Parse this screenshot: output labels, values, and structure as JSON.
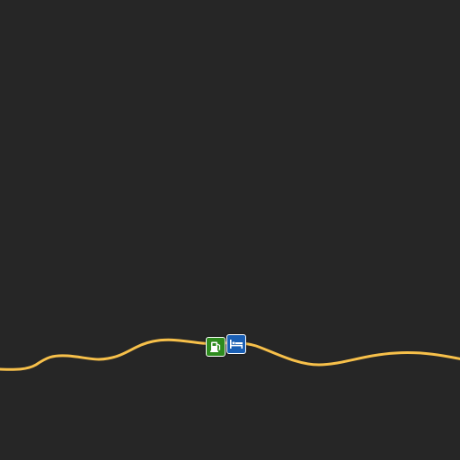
{
  "map": {
    "background_color": "#262626",
    "road": {
      "color": "#f7c04a",
      "type": "highway"
    },
    "pois": [
      {
        "name": "fuel-station",
        "icon": "fuel-pump-icon",
        "color": "#2e8b1e"
      },
      {
        "name": "lodging",
        "icon": "bed-icon",
        "color": "#1a5fb4"
      }
    ]
  }
}
